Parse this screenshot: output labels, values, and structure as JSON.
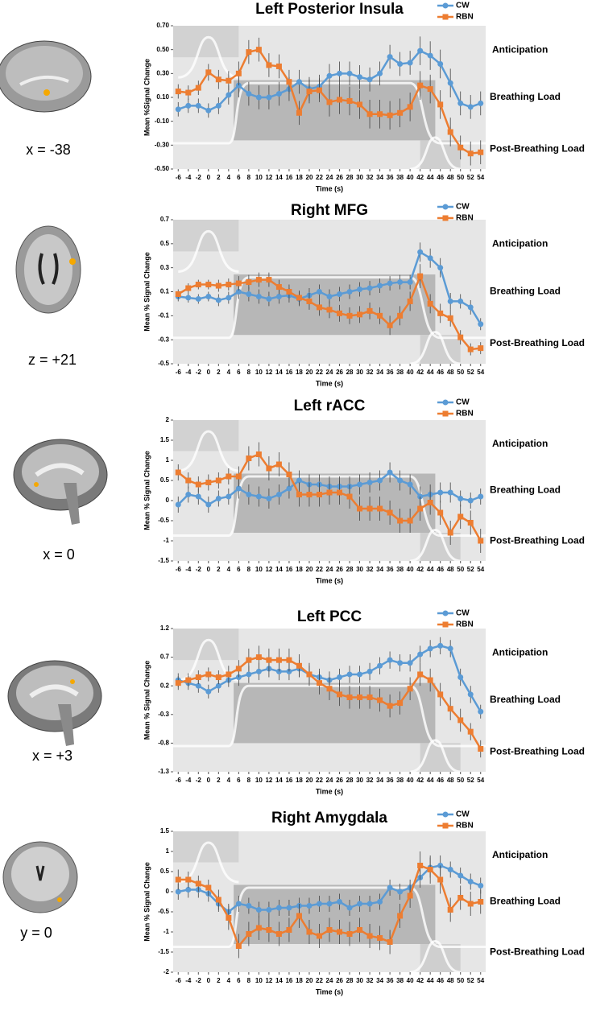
{
  "chart_data": [
    {
      "type": "line",
      "title": "Left Posterior Insula",
      "slice_label": "x = -38",
      "x_label": "Time (s)",
      "y_label": "Mean %Signal Change",
      "annotations": [
        "Anticipation",
        "Breathing Load",
        "Post-Breathing Load"
      ],
      "x": [
        -6,
        -4,
        -2,
        0,
        2,
        4,
        6,
        8,
        10,
        12,
        14,
        16,
        18,
        20,
        22,
        24,
        26,
        28,
        30,
        32,
        34,
        36,
        38,
        40,
        42,
        44,
        46,
        48,
        50,
        52,
        54
      ],
      "xticks": [
        -6,
        -4,
        -2,
        0,
        2,
        4,
        6,
        8,
        10,
        12,
        14,
        16,
        18,
        20,
        22,
        24,
        26,
        28,
        30,
        32,
        34,
        36,
        38,
        40,
        42,
        44,
        46,
        48,
        50,
        52,
        54
      ],
      "xlim": [
        -7,
        55
      ],
      "ylim": [
        -0.5,
        0.7
      ],
      "yticks": [
        {
          "value": -0.5,
          "label": "-0.50"
        },
        {
          "value": -0.3,
          "label": "-0.30"
        },
        {
          "value": -0.1,
          "label": "-0.10"
        },
        {
          "value": 0.1,
          "label": "0.10"
        },
        {
          "value": 0.3,
          "label": "0.30"
        },
        {
          "value": 0.5,
          "label": "0.50"
        },
        {
          "value": 0.7,
          "label": "0.70"
        }
      ],
      "legend": "upper right",
      "series": [
        {
          "name": "CW",
          "color": "#5b9bd5",
          "marker": "circle",
          "values": [
            0.0,
            0.03,
            0.03,
            -0.01,
            0.03,
            0.12,
            0.2,
            0.13,
            0.1,
            0.1,
            0.13,
            0.17,
            0.23,
            0.17,
            0.19,
            0.28,
            0.3,
            0.3,
            0.27,
            0.25,
            0.3,
            0.44,
            0.38,
            0.39,
            0.49,
            0.45,
            0.38,
            0.22,
            0.05,
            0.02,
            0.05
          ],
          "errors": [
            0.06,
            0.06,
            0.06,
            0.06,
            0.07,
            0.08,
            0.1,
            0.1,
            0.1,
            0.1,
            0.1,
            0.1,
            0.1,
            0.1,
            0.1,
            0.1,
            0.1,
            0.1,
            0.1,
            0.1,
            0.1,
            0.1,
            0.1,
            0.1,
            0.12,
            0.12,
            0.12,
            0.12,
            0.1,
            0.1,
            0.1
          ]
        },
        {
          "name": "RBN",
          "color": "#ed7d31",
          "marker": "square",
          "values": [
            0.15,
            0.14,
            0.18,
            0.31,
            0.25,
            0.24,
            0.3,
            0.48,
            0.5,
            0.37,
            0.36,
            0.23,
            -0.03,
            0.15,
            0.16,
            0.06,
            0.08,
            0.07,
            0.04,
            -0.04,
            -0.04,
            -0.05,
            -0.03,
            0.02,
            0.2,
            0.17,
            0.04,
            -0.19,
            -0.32,
            -0.37,
            -0.36
          ],
          "errors": [
            0.06,
            0.06,
            0.06,
            0.07,
            0.08,
            0.08,
            0.1,
            0.1,
            0.1,
            0.1,
            0.1,
            0.1,
            0.1,
            0.1,
            0.1,
            0.12,
            0.12,
            0.12,
            0.12,
            0.12,
            0.12,
            0.12,
            0.12,
            0.12,
            0.12,
            0.12,
            0.12,
            0.12,
            0.1,
            0.1,
            0.1
          ]
        }
      ]
    },
    {
      "type": "line",
      "title": "Right MFG",
      "slice_label": "z = +21",
      "x_label": "Time (s)",
      "y_label": "Mean % Signal Change",
      "annotations": [
        "Anticipation",
        "Breathing Load",
        "Post-Breathing Load"
      ],
      "x": [
        -6,
        -4,
        -2,
        0,
        2,
        4,
        6,
        8,
        10,
        12,
        14,
        16,
        18,
        20,
        22,
        24,
        26,
        28,
        30,
        32,
        34,
        36,
        38,
        40,
        42,
        44,
        46,
        48,
        50,
        52,
        54
      ],
      "xticks": [
        -6,
        -4,
        -2,
        0,
        2,
        4,
        6,
        8,
        10,
        12,
        14,
        16,
        18,
        20,
        22,
        24,
        26,
        28,
        30,
        32,
        34,
        36,
        38,
        40,
        42,
        44,
        46,
        48,
        50,
        52,
        54
      ],
      "xlim": [
        -7,
        55
      ],
      "ylim": [
        -0.5,
        0.7
      ],
      "yticks": [
        -0.5,
        -0.3,
        -0.1,
        0.1,
        0.3,
        0.5,
        0.7
      ],
      "legend": "upper right",
      "series": [
        {
          "name": "CW",
          "color": "#5b9bd5",
          "marker": "circle",
          "values": [
            0.06,
            0.05,
            0.04,
            0.06,
            0.03,
            0.05,
            0.1,
            0.08,
            0.06,
            0.04,
            0.06,
            0.07,
            0.04,
            0.07,
            0.1,
            0.06,
            0.08,
            0.1,
            0.12,
            0.13,
            0.15,
            0.17,
            0.18,
            0.18,
            0.43,
            0.38,
            0.3,
            0.02,
            0.02,
            -0.03,
            -0.17
          ],
          "errors": [
            0.04,
            0.04,
            0.04,
            0.04,
            0.05,
            0.05,
            0.06,
            0.06,
            0.06,
            0.06,
            0.06,
            0.06,
            0.06,
            0.06,
            0.06,
            0.06,
            0.06,
            0.06,
            0.06,
            0.06,
            0.06,
            0.06,
            0.06,
            0.06,
            0.08,
            0.08,
            0.08,
            0.07,
            0.06,
            0.06,
            0.05
          ]
        },
        {
          "name": "RBN",
          "color": "#ed7d31",
          "marker": "square",
          "values": [
            0.08,
            0.13,
            0.16,
            0.16,
            0.15,
            0.16,
            0.17,
            0.18,
            0.2,
            0.2,
            0.14,
            0.1,
            0.05,
            0.02,
            -0.03,
            -0.05,
            -0.08,
            -0.1,
            -0.09,
            -0.06,
            -0.1,
            -0.18,
            -0.1,
            0.02,
            0.23,
            0.0,
            -0.08,
            -0.12,
            -0.28,
            -0.38,
            -0.37
          ],
          "errors": [
            0.04,
            0.04,
            0.04,
            0.04,
            0.05,
            0.05,
            0.06,
            0.06,
            0.06,
            0.06,
            0.06,
            0.06,
            0.06,
            0.07,
            0.07,
            0.07,
            0.07,
            0.07,
            0.07,
            0.07,
            0.07,
            0.08,
            0.08,
            0.08,
            0.1,
            0.08,
            0.08,
            0.07,
            0.06,
            0.05,
            0.05
          ]
        }
      ]
    },
    {
      "type": "line",
      "title": "Left rACC",
      "slice_label": "x = 0",
      "x_label": "Time (s)",
      "y_label": "Mean % Signal Change",
      "annotations": [
        "Anticipation",
        "Breathing Load",
        "Post-Breathing Load"
      ],
      "x": [
        -6,
        -4,
        -2,
        0,
        2,
        4,
        6,
        8,
        10,
        12,
        14,
        16,
        18,
        20,
        22,
        24,
        26,
        28,
        30,
        32,
        34,
        36,
        38,
        40,
        42,
        44,
        46,
        48,
        50,
        52,
        54
      ],
      "xticks": [
        -6,
        -4,
        -2,
        0,
        2,
        4,
        6,
        8,
        10,
        12,
        14,
        16,
        18,
        20,
        22,
        24,
        26,
        28,
        30,
        32,
        34,
        36,
        38,
        40,
        42,
        44,
        46,
        48,
        50,
        52,
        54
      ],
      "xlim": [
        -7,
        55
      ],
      "ylim": [
        -1.5,
        2
      ],
      "yticks": [
        -1.5,
        -1,
        -0.5,
        0,
        0.5,
        1,
        1.5,
        2
      ],
      "legend": "upper right",
      "series": [
        {
          "name": "CW",
          "color": "#5b9bd5",
          "marker": "circle",
          "values": [
            -0.1,
            0.15,
            0.1,
            -0.1,
            0.05,
            0.1,
            0.3,
            0.15,
            0.1,
            0.05,
            0.15,
            0.3,
            0.5,
            0.4,
            0.4,
            0.35,
            0.35,
            0.35,
            0.4,
            0.45,
            0.5,
            0.7,
            0.5,
            0.4,
            0.1,
            0.15,
            0.2,
            0.2,
            0.05,
            0.0,
            0.1
          ],
          "errors": [
            0.2,
            0.2,
            0.2,
            0.2,
            0.2,
            0.2,
            0.25,
            0.25,
            0.25,
            0.25,
            0.25,
            0.25,
            0.25,
            0.25,
            0.25,
            0.25,
            0.25,
            0.25,
            0.25,
            0.25,
            0.25,
            0.25,
            0.25,
            0.25,
            0.25,
            0.25,
            0.25,
            0.25,
            0.2,
            0.2,
            0.2
          ]
        },
        {
          "name": "RBN",
          "color": "#ed7d31",
          "marker": "square",
          "values": [
            0.7,
            0.5,
            0.4,
            0.45,
            0.5,
            0.6,
            0.6,
            1.05,
            1.15,
            0.8,
            0.9,
            0.65,
            0.15,
            0.15,
            0.15,
            0.2,
            0.2,
            0.1,
            -0.2,
            -0.2,
            -0.2,
            -0.3,
            -0.5,
            -0.5,
            -0.2,
            -0.05,
            -0.3,
            -0.8,
            -0.4,
            -0.55,
            -1.0
          ],
          "errors": [
            0.2,
            0.2,
            0.2,
            0.2,
            0.2,
            0.2,
            0.25,
            0.3,
            0.3,
            0.3,
            0.3,
            0.3,
            0.3,
            0.3,
            0.3,
            0.3,
            0.3,
            0.3,
            0.3,
            0.3,
            0.3,
            0.3,
            0.3,
            0.3,
            0.3,
            0.3,
            0.3,
            0.3,
            0.3,
            0.3,
            0.3
          ]
        }
      ]
    },
    {
      "type": "line",
      "title": "Left PCC",
      "slice_label": "x = +3",
      "x_label": "Time (s)",
      "y_label": "Mean % Signal Change",
      "annotations": [
        "Anticipation",
        "Breathing Load",
        "Post-Breathing Load"
      ],
      "x": [
        -6,
        -4,
        -2,
        0,
        2,
        4,
        6,
        8,
        10,
        12,
        14,
        16,
        18,
        20,
        22,
        24,
        26,
        28,
        30,
        32,
        34,
        36,
        38,
        40,
        42,
        44,
        46,
        48,
        50,
        52,
        54
      ],
      "xticks": [
        -6,
        -4,
        -2,
        0,
        2,
        4,
        6,
        8,
        10,
        12,
        14,
        16,
        18,
        20,
        22,
        24,
        26,
        28,
        30,
        32,
        34,
        36,
        38,
        40,
        42,
        44,
        46,
        48,
        50,
        52,
        54
      ],
      "xlim": [
        -7,
        55
      ],
      "ylim": [
        -1.3,
        1.2
      ],
      "yticks": [
        -1.3,
        -0.8,
        -0.3,
        0.2,
        0.7,
        1.2
      ],
      "legend": "upper right",
      "series": [
        {
          "name": "CW",
          "color": "#5b9bd5",
          "marker": "circle",
          "values": [
            0.3,
            0.25,
            0.2,
            0.1,
            0.2,
            0.3,
            0.35,
            0.4,
            0.45,
            0.5,
            0.45,
            0.45,
            0.5,
            0.4,
            0.35,
            0.3,
            0.35,
            0.4,
            0.4,
            0.45,
            0.55,
            0.65,
            0.6,
            0.6,
            0.75,
            0.85,
            0.9,
            0.85,
            0.35,
            0.05,
            -0.25
          ],
          "errors": [
            0.12,
            0.12,
            0.12,
            0.12,
            0.12,
            0.12,
            0.15,
            0.15,
            0.15,
            0.15,
            0.15,
            0.15,
            0.15,
            0.15,
            0.15,
            0.15,
            0.15,
            0.15,
            0.15,
            0.15,
            0.15,
            0.15,
            0.15,
            0.15,
            0.15,
            0.15,
            0.15,
            0.15,
            0.15,
            0.15,
            0.12
          ]
        },
        {
          "name": "RBN",
          "color": "#ed7d31",
          "marker": "square",
          "values": [
            0.25,
            0.3,
            0.35,
            0.4,
            0.35,
            0.4,
            0.5,
            0.65,
            0.7,
            0.65,
            0.65,
            0.65,
            0.55,
            0.4,
            0.25,
            0.15,
            0.05,
            0.0,
            0.0,
            0.0,
            -0.05,
            -0.15,
            -0.1,
            0.15,
            0.4,
            0.3,
            0.05,
            -0.2,
            -0.4,
            -0.6,
            -0.9
          ],
          "errors": [
            0.12,
            0.12,
            0.12,
            0.12,
            0.12,
            0.15,
            0.15,
            0.2,
            0.2,
            0.2,
            0.2,
            0.2,
            0.2,
            0.2,
            0.2,
            0.2,
            0.2,
            0.2,
            0.2,
            0.2,
            0.2,
            0.2,
            0.2,
            0.2,
            0.2,
            0.2,
            0.2,
            0.2,
            0.2,
            0.15,
            0.15
          ]
        }
      ]
    },
    {
      "type": "line",
      "title": "Right Amygdala",
      "slice_label": "y = 0",
      "x_label": "Time (s)",
      "y_label": "Mean % Signal Change",
      "annotations": [
        "Anticipation",
        "Breathing Load",
        "Post-Breathing Load"
      ],
      "x": [
        -6,
        -4,
        -2,
        0,
        2,
        4,
        6,
        8,
        10,
        12,
        14,
        16,
        18,
        20,
        22,
        24,
        26,
        28,
        30,
        32,
        34,
        36,
        38,
        40,
        42,
        44,
        46,
        48,
        50,
        52,
        54
      ],
      "xticks": [
        -6,
        -4,
        -2,
        0,
        2,
        4,
        6,
        8,
        10,
        12,
        14,
        16,
        18,
        20,
        22,
        24,
        26,
        28,
        30,
        32,
        34,
        36,
        38,
        40,
        42,
        44,
        46,
        48,
        50,
        52,
        54
      ],
      "xlim": [
        -7,
        55
      ],
      "ylim": [
        -2,
        1.5
      ],
      "yticks": [
        -2,
        -1.5,
        -1,
        -0.5,
        0,
        0.5,
        1,
        1.5
      ],
      "legend": "upper right",
      "series": [
        {
          "name": "CW",
          "color": "#5b9bd5",
          "marker": "circle",
          "values": [
            0.0,
            0.05,
            0.05,
            -0.05,
            -0.3,
            -0.5,
            -0.3,
            -0.35,
            -0.45,
            -0.45,
            -0.4,
            -0.4,
            -0.35,
            -0.35,
            -0.3,
            -0.3,
            -0.25,
            -0.4,
            -0.3,
            -0.3,
            -0.25,
            0.1,
            0.0,
            0.1,
            0.35,
            0.6,
            0.65,
            0.55,
            0.4,
            0.25,
            0.15
          ],
          "errors": [
            0.2,
            0.2,
            0.2,
            0.2,
            0.2,
            0.2,
            0.2,
            0.2,
            0.2,
            0.2,
            0.2,
            0.2,
            0.2,
            0.2,
            0.2,
            0.2,
            0.2,
            0.2,
            0.2,
            0.2,
            0.2,
            0.2,
            0.2,
            0.2,
            0.25,
            0.25,
            0.25,
            0.2,
            0.2,
            0.2,
            0.2
          ]
        },
        {
          "name": "RBN",
          "color": "#ed7d31",
          "marker": "square",
          "values": [
            0.3,
            0.3,
            0.2,
            0.1,
            -0.2,
            -0.65,
            -1.35,
            -1.05,
            -0.9,
            -0.95,
            -1.05,
            -0.95,
            -0.6,
            -1.0,
            -1.1,
            -0.95,
            -1.0,
            -1.05,
            -0.95,
            -1.1,
            -1.15,
            -1.25,
            -0.6,
            -0.1,
            0.65,
            0.55,
            0.3,
            -0.45,
            -0.15,
            -0.3,
            -0.25
          ],
          "errors": [
            0.25,
            0.2,
            0.2,
            0.2,
            0.25,
            0.3,
            0.3,
            0.3,
            0.3,
            0.3,
            0.3,
            0.3,
            0.3,
            0.3,
            0.3,
            0.3,
            0.3,
            0.3,
            0.3,
            0.3,
            0.3,
            0.3,
            0.3,
            0.3,
            0.35,
            0.35,
            0.35,
            0.3,
            0.3,
            0.3,
            0.3
          ]
        }
      ]
    }
  ]
}
